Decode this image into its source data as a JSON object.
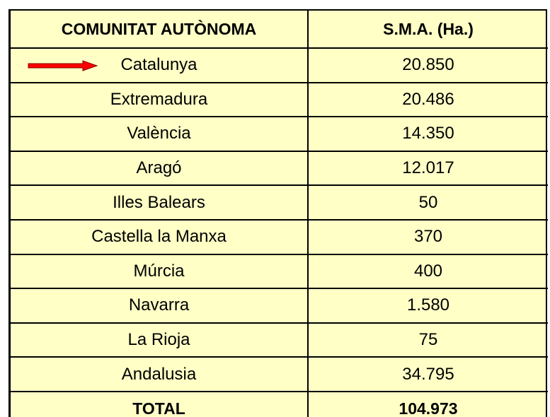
{
  "table": {
    "header": [
      "COMUNITAT AUTÒNOMA",
      "S.M.A. (Ha.)"
    ],
    "rows": [
      [
        "Catalunya",
        "20.850"
      ],
      [
        "Extremadura",
        "20.486"
      ],
      [
        "València",
        "14.350"
      ],
      [
        "Aragó",
        "12.017"
      ],
      [
        "Illes Balears",
        "50"
      ],
      [
        "Castella la Manxa",
        "370"
      ],
      [
        "Múrcia",
        "400"
      ],
      [
        "Navarra",
        "1.580"
      ],
      [
        "La Rioja",
        "75"
      ],
      [
        "Andalusia",
        "34.795"
      ]
    ],
    "footer": [
      "TOTAL",
      "104.973"
    ]
  }
}
